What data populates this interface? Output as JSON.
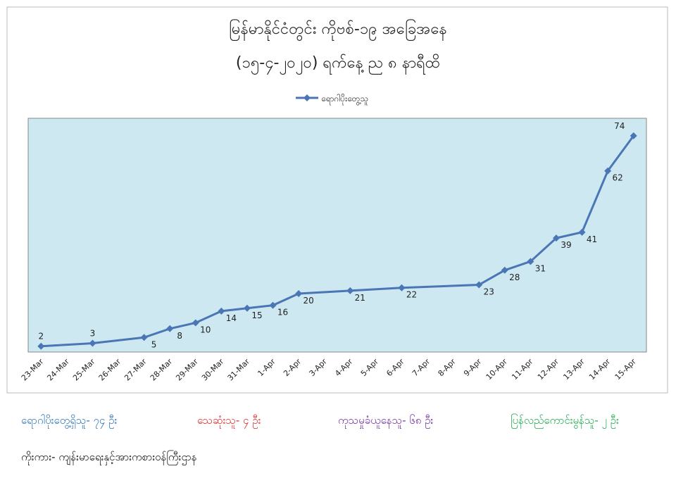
{
  "chart_data": {
    "type": "line",
    "title": "မြန်မာနိုင်ငံတွင်း ကိုဗစ်-၁၉ အခြေအနေ",
    "subtitle": "(၁၅-၄-၂၀၂၀) ရက်နေ့ ည ၈ နာရီထိ",
    "xticks": [
      "23-Mar",
      "24-Mar",
      "25-Mar",
      "26-Mar",
      "27-Mar",
      "28-Mar",
      "29-Mar",
      "30-Mar",
      "31-Mar",
      "1-Apr",
      "2-Apr",
      "3-Apr",
      "4-Apr",
      "5-Apr",
      "6-Apr",
      "7-Apr",
      "8-Apr",
      "9-Apr",
      "10-Apr",
      "11-Apr",
      "12-Apr",
      "13-Apr",
      "14-Apr",
      "15-Apr"
    ],
    "x": [
      "23-Mar",
      "25-Mar",
      "27-Mar",
      "28-Mar",
      "29-Mar",
      "30-Mar",
      "31-Mar",
      "1-Apr",
      "2-Apr",
      "4-Apr",
      "6-Apr",
      "9-Apr",
      "10-Apr",
      "11-Apr",
      "12-Apr",
      "13-Apr",
      "14-Apr",
      "15-Apr"
    ],
    "series": [
      {
        "name": "ရောဂါပိုးတွေ့သူ",
        "color": "#4a76b5",
        "values": [
          2,
          3,
          5,
          8,
          10,
          14,
          15,
          16,
          20,
          21,
          22,
          23,
          28,
          31,
          39,
          41,
          62,
          74
        ]
      }
    ],
    "ylim": [
      0,
      80
    ],
    "plot_background": "#cde8f1",
    "legend": "top"
  },
  "footer": {
    "stats": [
      {
        "text": "ရောဂါပိုးတွေ့ရှိသူ- ၇၄ ဦး",
        "color": "#2e75b6"
      },
      {
        "text": "သေဆုံးသူ- ၄ ဦး",
        "color": "#e02b2b"
      },
      {
        "text": "ကုသမှုခံယူနေသူ- ၆၈ ဦး",
        "color": "#7030a0"
      },
      {
        "text": "ပြန်လည်ကောင်းမွန်သူ- ၂ ဦး",
        "color": "#1ea84a"
      }
    ],
    "source": "ကိုးကား- ကျန်းမာရေးနှင့်အားကစားဝန်ကြီးဌာန"
  }
}
